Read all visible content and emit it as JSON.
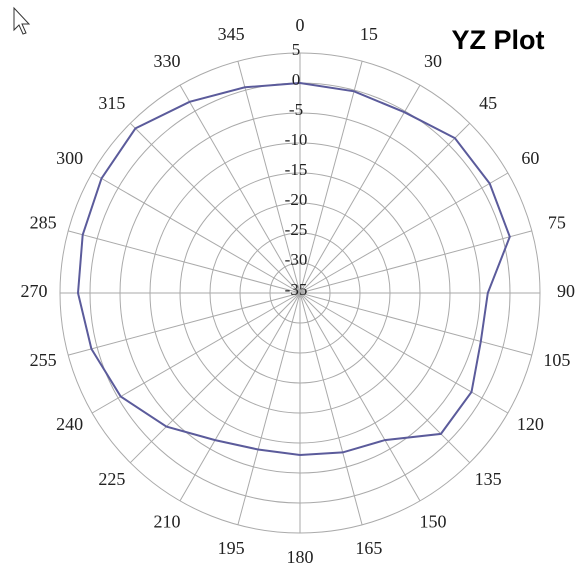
{
  "chart_data": {
    "type": "polar",
    "title": "YZ Plot",
    "theta": [
      0,
      15,
      30,
      45,
      60,
      75,
      90,
      105,
      120,
      135,
      150,
      165,
      180,
      195,
      210,
      225,
      240,
      255,
      270,
      285,
      300,
      315,
      330,
      345
    ],
    "series": [
      {
        "color": "#5b5b9b",
        "values": [
          0,
          -0.2,
          -0.2,
          1.5,
          1.5,
          1.2,
          -3.7,
          -3.8,
          -2,
          -1.8,
          -6.7,
          -7.5,
          -8,
          -8,
          -6.7,
          -3.5,
          -0.5,
          1,
          2,
          2.5,
          3.2,
          3.8,
          1.8,
          0.5
        ]
      }
    ],
    "thetaticks": [
      0,
      15,
      30,
      45,
      60,
      75,
      90,
      105,
      120,
      135,
      150,
      165,
      180,
      195,
      210,
      225,
      240,
      255,
      270,
      285,
      300,
      315,
      330,
      345
    ],
    "rlim": [
      -35,
      5
    ],
    "rticks": [
      5,
      0,
      -5,
      -10,
      -15,
      -20,
      -25,
      -30,
      -35
    ],
    "grid": true
  }
}
